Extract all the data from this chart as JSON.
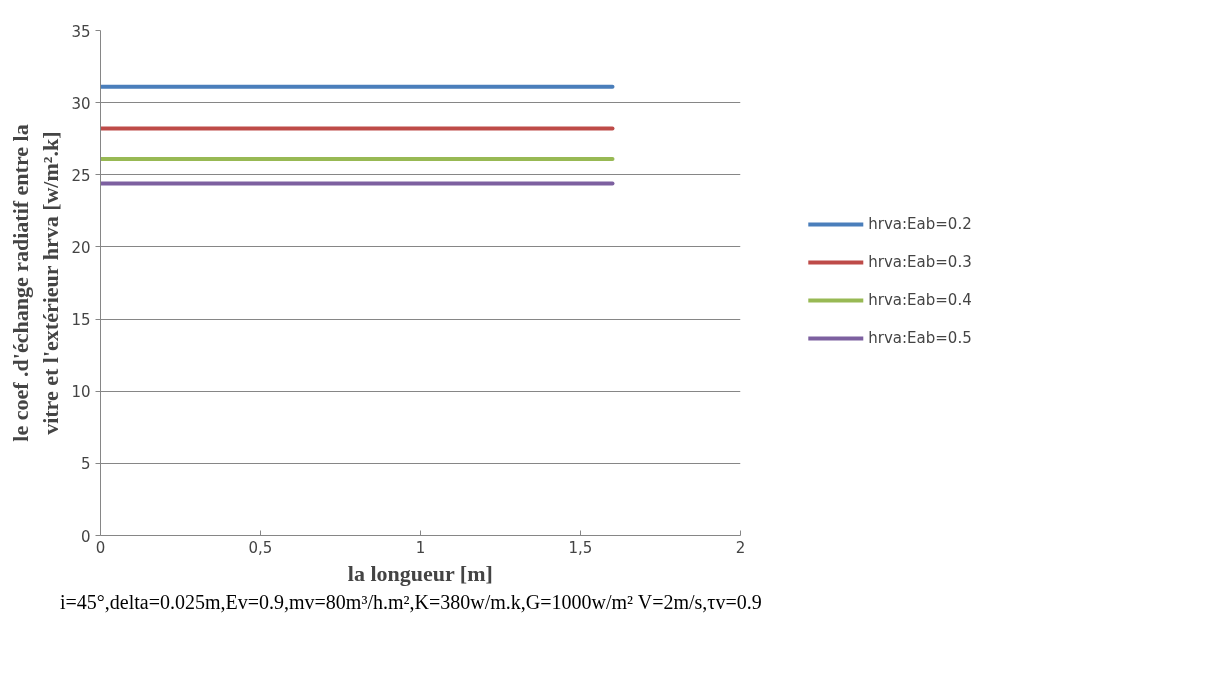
{
  "chart_data": {
    "type": "line",
    "xlabel": "la longueur [m]",
    "ylabel": "le coef .d'échange radiatif entre la vitre et l'extérieur hrva [w/m².k]",
    "annotations": [
      "i=45°,delta=0.025m,Ev=0.9,mv=80m³/h.m²,K=380w/m.k,G=1000w/m²  V=2m/s,τv=0.9"
    ],
    "x": [
      0,
      1.6
    ],
    "series": [
      {
        "name": "hrva:Eab=0.2",
        "color": "#4a7ebb",
        "values": [
          31.1,
          31.1
        ]
      },
      {
        "name": "hrva:Eab=0.3",
        "color": "#be4b48",
        "values": [
          28.2,
          28.2
        ]
      },
      {
        "name": "hrva:Eab=0.4",
        "color": "#98b954",
        "values": [
          26.1,
          26.1
        ]
      },
      {
        "name": "hrva:Eab=0.5",
        "color": "#7d60a0",
        "values": [
          24.4,
          24.4
        ]
      }
    ],
    "xlim": [
      0,
      2
    ],
    "xticks": [
      {
        "value": 0,
        "label": "0"
      },
      {
        "value": 0.5,
        "label": "0,5"
      },
      {
        "value": 1,
        "label": "1"
      },
      {
        "value": 1.5,
        "label": "1,5"
      },
      {
        "value": 2,
        "label": "2"
      }
    ],
    "ylim": [
      0,
      35
    ],
    "yticks": [
      0,
      5,
      10,
      15,
      20,
      25,
      30,
      35
    ],
    "grid": "y",
    "legend": "right",
    "marker": "none",
    "line_style": "solid"
  }
}
